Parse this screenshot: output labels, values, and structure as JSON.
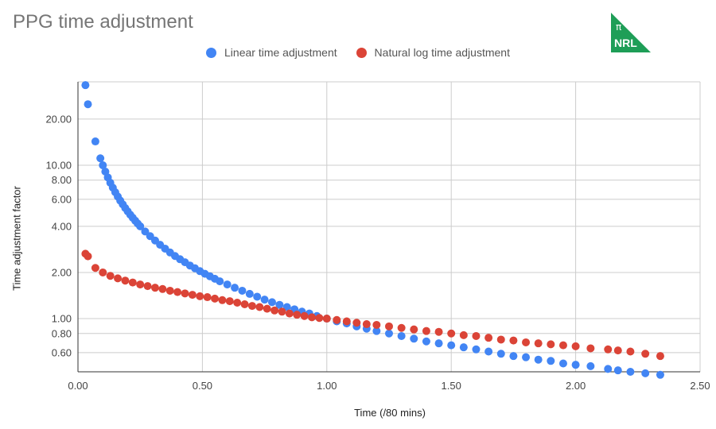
{
  "chart_data": {
    "type": "scatter",
    "title": "PPG time adjustment",
    "xlabel": "Time (/80 mins)",
    "ylabel": "Time adjustment factor",
    "xlim": [
      0,
      2.5
    ],
    "ylim": [
      0.45,
      35
    ],
    "y_scale": "log",
    "x_ticks": [
      "0.00",
      "0.50",
      "1.00",
      "1.50",
      "2.00",
      "2.50"
    ],
    "y_ticks": [
      "0.60",
      "0.80",
      "1.00",
      "2.00",
      "4.00",
      "6.00",
      "8.00",
      "10.00",
      "20.00"
    ],
    "grid": true,
    "legend_position": "top",
    "series": [
      {
        "name": "Linear time adjustment",
        "color": "#4285F4",
        "points": [
          [
            0.03,
            33.3
          ],
          [
            0.04,
            25.0
          ],
          [
            0.07,
            14.3
          ],
          [
            0.09,
            11.1
          ],
          [
            0.1,
            10.0
          ],
          [
            0.11,
            9.09
          ],
          [
            0.12,
            8.33
          ],
          [
            0.13,
            7.69
          ],
          [
            0.14,
            7.14
          ],
          [
            0.15,
            6.67
          ],
          [
            0.16,
            6.25
          ],
          [
            0.17,
            5.88
          ],
          [
            0.18,
            5.56
          ],
          [
            0.19,
            5.26
          ],
          [
            0.2,
            5.0
          ],
          [
            0.21,
            4.76
          ],
          [
            0.22,
            4.55
          ],
          [
            0.23,
            4.35
          ],
          [
            0.24,
            4.17
          ],
          [
            0.25,
            4.0
          ],
          [
            0.27,
            3.7
          ],
          [
            0.29,
            3.45
          ],
          [
            0.31,
            3.23
          ],
          [
            0.33,
            3.03
          ],
          [
            0.35,
            2.86
          ],
          [
            0.37,
            2.7
          ],
          [
            0.39,
            2.56
          ],
          [
            0.41,
            2.44
          ],
          [
            0.43,
            2.33
          ],
          [
            0.45,
            2.22
          ],
          [
            0.47,
            2.13
          ],
          [
            0.49,
            2.04
          ],
          [
            0.51,
            1.96
          ],
          [
            0.53,
            1.89
          ],
          [
            0.55,
            1.82
          ],
          [
            0.57,
            1.75
          ],
          [
            0.6,
            1.67
          ],
          [
            0.63,
            1.59
          ],
          [
            0.66,
            1.52
          ],
          [
            0.69,
            1.45
          ],
          [
            0.72,
            1.39
          ],
          [
            0.75,
            1.33
          ],
          [
            0.78,
            1.28
          ],
          [
            0.81,
            1.23
          ],
          [
            0.84,
            1.19
          ],
          [
            0.87,
            1.15
          ],
          [
            0.9,
            1.11
          ],
          [
            0.93,
            1.08
          ],
          [
            0.96,
            1.04
          ],
          [
            1.0,
            1.0
          ],
          [
            1.04,
            0.96
          ],
          [
            1.08,
            0.93
          ],
          [
            1.12,
            0.89
          ],
          [
            1.16,
            0.86
          ],
          [
            1.2,
            0.83
          ],
          [
            1.25,
            0.8
          ],
          [
            1.3,
            0.77
          ],
          [
            1.35,
            0.74
          ],
          [
            1.4,
            0.71
          ],
          [
            1.45,
            0.69
          ],
          [
            1.5,
            0.67
          ],
          [
            1.55,
            0.65
          ],
          [
            1.6,
            0.63
          ],
          [
            1.65,
            0.61
          ],
          [
            1.7,
            0.59
          ],
          [
            1.75,
            0.57
          ],
          [
            1.8,
            0.56
          ],
          [
            1.85,
            0.54
          ],
          [
            1.9,
            0.53
          ],
          [
            1.95,
            0.51
          ],
          [
            2.0,
            0.5
          ],
          [
            2.06,
            0.49
          ],
          [
            2.13,
            0.47
          ],
          [
            2.17,
            0.46
          ],
          [
            2.22,
            0.45
          ],
          [
            2.28,
            0.44
          ],
          [
            2.34,
            0.43
          ]
        ]
      },
      {
        "name": "Natural log time adjustment",
        "color": "#DB4437",
        "points": [
          [
            0.03,
            2.65
          ],
          [
            0.04,
            2.55
          ],
          [
            0.07,
            2.14
          ],
          [
            0.1,
            2.0
          ],
          [
            0.13,
            1.9
          ],
          [
            0.16,
            1.83
          ],
          [
            0.19,
            1.77
          ],
          [
            0.22,
            1.72
          ],
          [
            0.25,
            1.67
          ],
          [
            0.28,
            1.63
          ],
          [
            0.31,
            1.59
          ],
          [
            0.34,
            1.56
          ],
          [
            0.37,
            1.52
          ],
          [
            0.4,
            1.49
          ],
          [
            0.43,
            1.46
          ],
          [
            0.46,
            1.43
          ],
          [
            0.49,
            1.4
          ],
          [
            0.52,
            1.38
          ],
          [
            0.55,
            1.35
          ],
          [
            0.58,
            1.32
          ],
          [
            0.61,
            1.3
          ],
          [
            0.64,
            1.27
          ],
          [
            0.67,
            1.24
          ],
          [
            0.7,
            1.21
          ],
          [
            0.73,
            1.19
          ],
          [
            0.76,
            1.16
          ],
          [
            0.79,
            1.13
          ],
          [
            0.82,
            1.11
          ],
          [
            0.85,
            1.08
          ],
          [
            0.88,
            1.06
          ],
          [
            0.91,
            1.04
          ],
          [
            0.94,
            1.02
          ],
          [
            0.97,
            1.01
          ],
          [
            1.0,
            1.0
          ],
          [
            1.04,
            0.98
          ],
          [
            1.08,
            0.96
          ],
          [
            1.12,
            0.94
          ],
          [
            1.16,
            0.92
          ],
          [
            1.2,
            0.91
          ],
          [
            1.25,
            0.89
          ],
          [
            1.3,
            0.87
          ],
          [
            1.35,
            0.85
          ],
          [
            1.4,
            0.83
          ],
          [
            1.45,
            0.82
          ],
          [
            1.5,
            0.8
          ],
          [
            1.55,
            0.78
          ],
          [
            1.6,
            0.77
          ],
          [
            1.65,
            0.75
          ],
          [
            1.7,
            0.73
          ],
          [
            1.75,
            0.72
          ],
          [
            1.8,
            0.7
          ],
          [
            1.85,
            0.69
          ],
          [
            1.9,
            0.68
          ],
          [
            1.95,
            0.67
          ],
          [
            2.0,
            0.66
          ],
          [
            2.06,
            0.64
          ],
          [
            2.13,
            0.63
          ],
          [
            2.17,
            0.62
          ],
          [
            2.22,
            0.61
          ],
          [
            2.28,
            0.59
          ],
          [
            2.34,
            0.57
          ]
        ]
      }
    ]
  },
  "logo": {
    "symbol": "π",
    "text": "NRL",
    "color": "#1e9e57"
  }
}
